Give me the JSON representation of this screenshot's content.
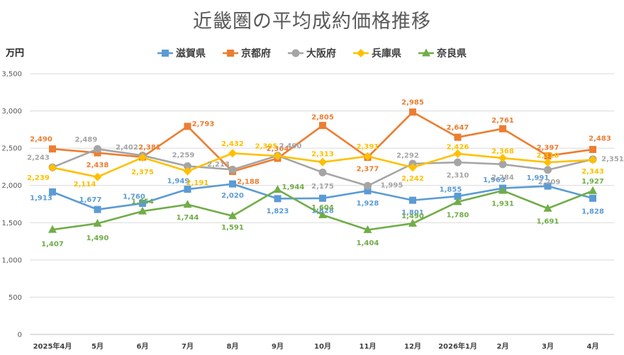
{
  "title": "近畿圏の平均成約価格推移",
  "unit": "万円",
  "chart_data": {
    "type": "line",
    "title": "近畿圏の平均成約価格推移",
    "ylabel": "万円",
    "xlabel": "",
    "ylim": [
      0,
      3500
    ],
    "yticks": [
      0,
      500,
      1000,
      1500,
      2000,
      2500,
      3000,
      3500
    ],
    "ytick_labels": [
      "0",
      "500",
      "1,000",
      "1,500",
      "2,000",
      "2,500",
      "3,000",
      "3,500"
    ],
    "categories": [
      "2025年4月",
      "5月",
      "6月",
      "7月",
      "8月",
      "9月",
      "10月",
      "11月",
      "12月",
      "2026年1月",
      "2月",
      "3月",
      "4月"
    ],
    "grid": true,
    "legend_position": "top",
    "series": [
      {
        "name": "滋賀県",
        "color": "#5B9BD5",
        "marker": "square",
        "values": [
          1913,
          1677,
          1760,
          1949,
          2020,
          1823,
          1828,
          1928,
          1801,
          1855,
          1963,
          1991,
          1828
        ],
        "labels": [
          "1,913",
          "1,677",
          "1,760",
          "1,949",
          "2,020",
          "1,823",
          "1,828",
          "1,928",
          "1,801",
          "1,855",
          "1,963",
          "1,991",
          "1,828"
        ]
      },
      {
        "name": "京都府",
        "color": "#ED7D31",
        "marker": "square",
        "values": [
          2490,
          2438,
          2381,
          2793,
          2188,
          2364,
          2805,
          2377,
          2985,
          2647,
          2761,
          2397,
          2483
        ],
        "labels": [
          "2,490",
          "2,438",
          "2,381",
          "2,793",
          "2,188",
          "2,364",
          "2,805",
          "2,377",
          "2,985",
          "2,647",
          "2,761",
          "2,397",
          "2,483"
        ]
      },
      {
        "name": "大阪府",
        "color": "#A5A5A5",
        "marker": "circle",
        "values": [
          2243,
          2489,
          2402,
          2259,
          2213,
          2400,
          2175,
          1995,
          2292,
          2310,
          2284,
          2209,
          2351
        ],
        "labels": [
          "2,243",
          "2,489",
          "2,402",
          "2,259",
          "2,213",
          "2,400",
          "2,175",
          "1,995",
          "2,292",
          "2,310",
          "2,284",
          "2,209",
          "2,351"
        ]
      },
      {
        "name": "兵庫県",
        "color": "#FFC000",
        "marker": "diamond",
        "values": [
          2239,
          2114,
          2375,
          2191,
          2432,
          2395,
          2313,
          2391,
          2242,
          2426,
          2368,
          2310,
          2343
        ],
        "labels": [
          "2,239",
          "2,114",
          "2,375",
          "2,191",
          "2,432",
          "2,395",
          "2,313",
          "2,391",
          "2,242",
          "2,426",
          "2,368",
          "2,310",
          "2,343"
        ]
      },
      {
        "name": "奈良県",
        "color": "#70AD47",
        "marker": "triangle",
        "values": [
          1407,
          1490,
          1654,
          1744,
          1591,
          1944,
          1604,
          1404,
          1490,
          1780,
          1931,
          1691,
          1927
        ],
        "labels": [
          "1,407",
          "1,490",
          "1,654",
          "1,744",
          "1,591",
          "1,944",
          "1,604",
          "1,404",
          "1,490",
          "1,780",
          "1,931",
          "1,691",
          "1,927"
        ]
      }
    ]
  }
}
